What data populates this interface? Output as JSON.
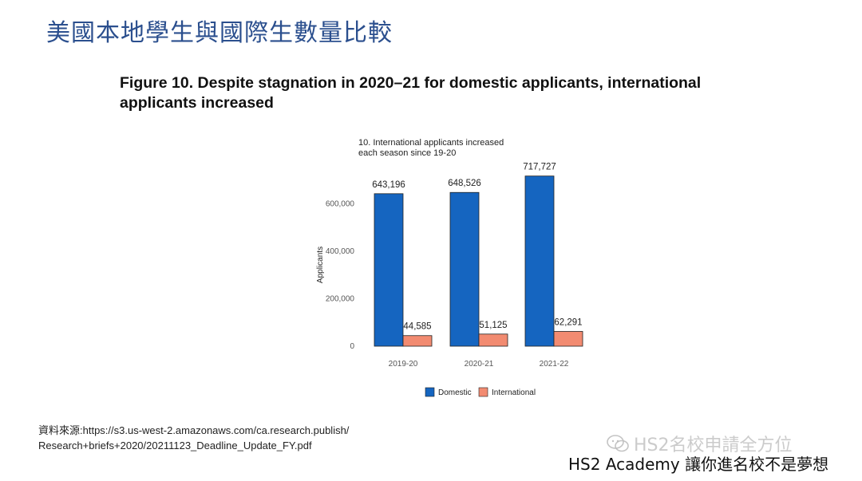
{
  "slide": {
    "title": "美國本地學生與國際生數量比較",
    "figure_title_line1": "Figure 10. Despite stagnation in 2020–21 for domestic applicants, international",
    "figure_title_line2": "applicants increased",
    "source_line1": "資料來源:https://s3.us-west-2.amazonaws.com/ca.research.publish/",
    "source_line2": "Research+briefs+2020/20211123_Deadline_Update_FY.pdf",
    "watermark": "HS2名校申請全方位",
    "tagline": "HS2 Academy 讓你進名校不是夢想"
  },
  "chart_data": {
    "type": "bar",
    "title_line1": "10. International applicants increased",
    "title_line2": "each season since 19-20",
    "categories": [
      "2019-20",
      "2020-21",
      "2021-22"
    ],
    "series": [
      {
        "name": "Domestic",
        "color": "#1565c0",
        "values": [
          643196,
          648526,
          717727
        ],
        "labels": [
          "643,196",
          "648,526",
          "717,727"
        ]
      },
      {
        "name": "International",
        "color": "#f28b71",
        "values": [
          44585,
          51125,
          62291
        ],
        "labels": [
          "44,585",
          "51,125",
          "62,291"
        ]
      }
    ],
    "ylabel": "Applicants",
    "yticks": [
      0,
      200000,
      400000,
      600000
    ],
    "ytick_labels": [
      "0",
      "200,000",
      "400,000",
      "600,000"
    ],
    "ylim": [
      0,
      720000
    ],
    "legend": "bottom"
  }
}
